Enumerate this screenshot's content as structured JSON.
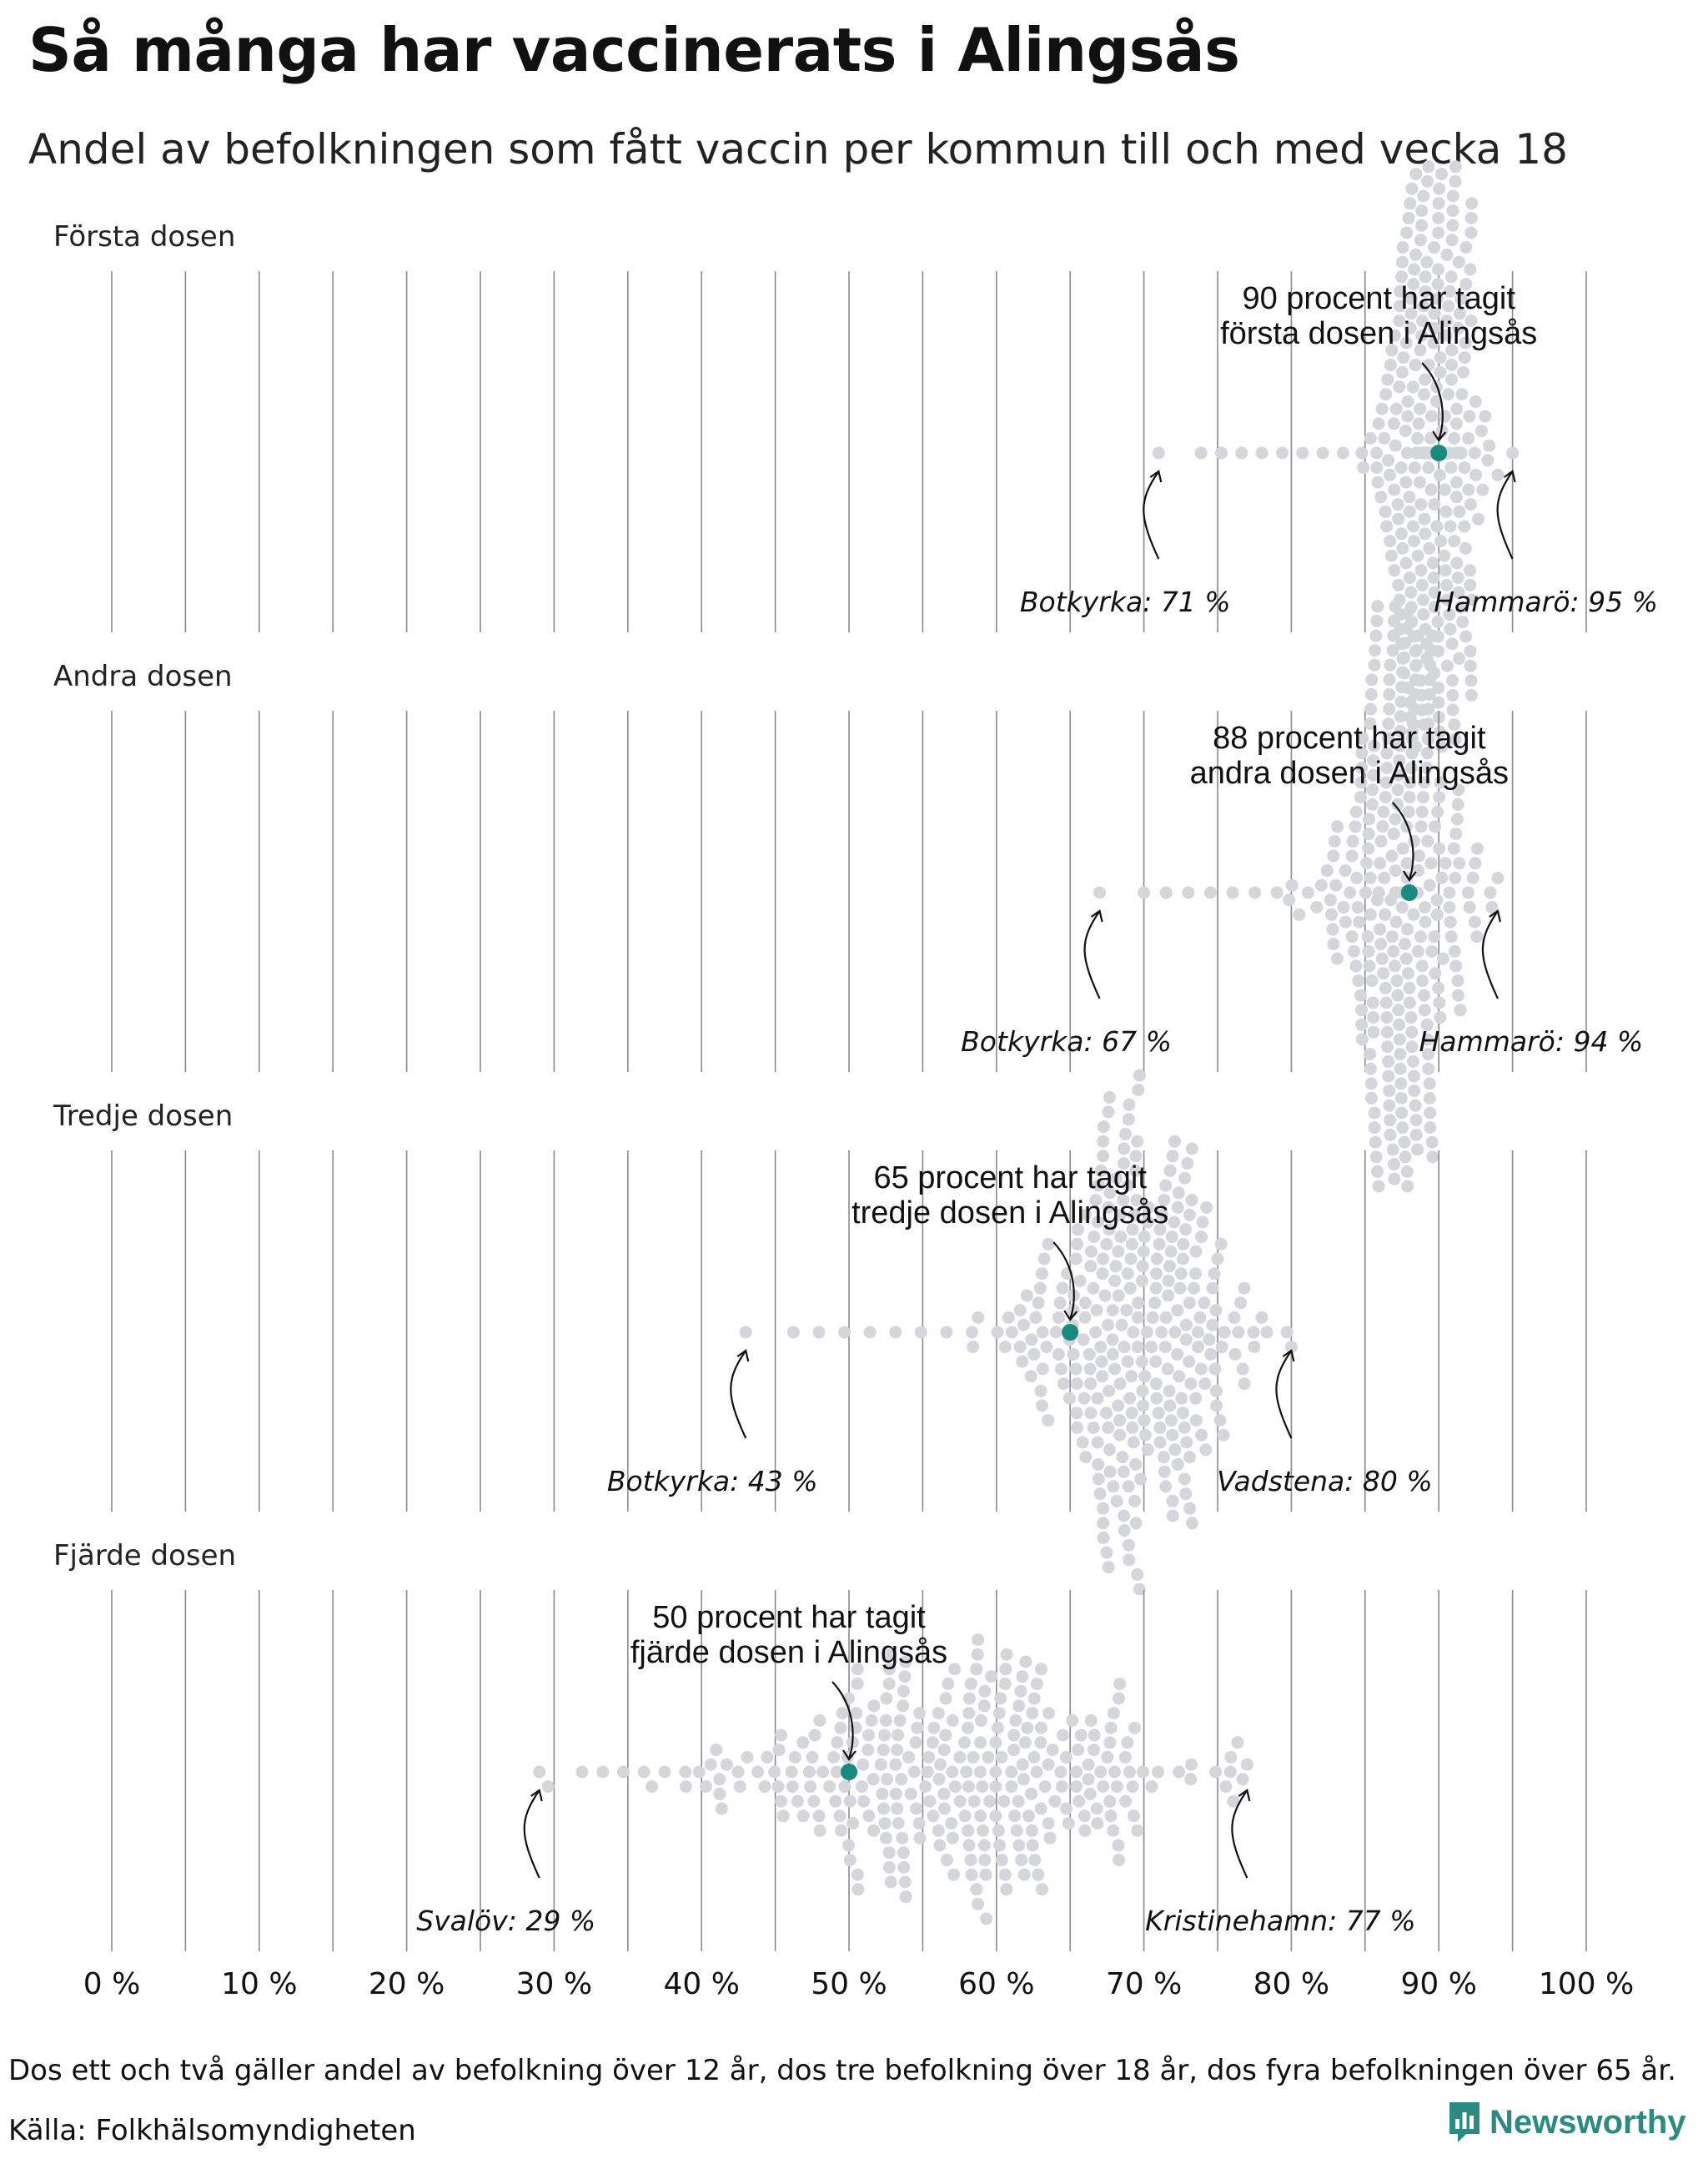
{
  "title": "Så många har vaccinerats i Alingsås",
  "subtitle": "Andel av befolkningen som fått vaccin per kommun till och med vecka 18",
  "footnote": "Dos ett och två gäller andel av befolkning över 12 år, dos tre befolkning över 18 år, dos fyra befolkningen över 65 år.",
  "source": "Källa: Folkhälsomyndigheten",
  "brand": "Newsworthy",
  "colors": {
    "dot": "#d5d5dc",
    "highlight": "#1a8a7e",
    "grid": "#8a8a8a",
    "brand": "#2b8a82"
  },
  "chart_data": {
    "type": "scatter",
    "subtype": "beeswarm",
    "xlim": [
      0,
      100
    ],
    "x_ticks": [
      "0 %",
      "10 %",
      "20 %",
      "30 %",
      "40 %",
      "50 %",
      "60 %",
      "70 %",
      "80 %",
      "90 %",
      "100 %"
    ],
    "grid": true,
    "panels": [
      {
        "label": "Första dosen",
        "highlight": {
          "name": "Alingsås",
          "value": 90,
          "annotation": [
            "90 procent har tagit",
            "första dosen i Alingsås"
          ]
        },
        "min": {
          "name": "Botkyrka",
          "value": 71,
          "label": "Botkyrka: 71 %"
        },
        "max": {
          "name": "Hammarö",
          "value": 95,
          "label": "Hammarö: 95 %"
        },
        "distribution": {
          "center": 89.5,
          "spread": 1.8
        }
      },
      {
        "label": "Andra dosen",
        "highlight": {
          "name": "Alingsås",
          "value": 88,
          "annotation": [
            "88 procent har tagit",
            "andra dosen i Alingsås"
          ]
        },
        "min": {
          "name": "Botkyrka",
          "value": 67,
          "label": "Botkyrka: 67 %"
        },
        "max": {
          "name": "Hammarö",
          "value": 94,
          "label": "Hammarö: 94 %"
        },
        "distribution": {
          "center": 87.5,
          "spread": 2.2
        }
      },
      {
        "label": "Tredje dosen",
        "highlight": {
          "name": "Alingsås",
          "value": 65,
          "annotation": [
            "65 procent har tagit",
            "tredje dosen i Alingsås"
          ]
        },
        "min": {
          "name": "Botkyrka",
          "value": 43,
          "label": "Botkyrka: 43 %"
        },
        "max": {
          "name": "Vadstena",
          "value": 80,
          "label": "Vadstena: 80 %"
        },
        "distribution": {
          "center": 69,
          "spread": 4.0
        }
      },
      {
        "label": "Fjärde dosen",
        "highlight": {
          "name": "Alingsås",
          "value": 50,
          "annotation": [
            "50 procent har tagit",
            "fjärde dosen i Alingsås"
          ]
        },
        "min": {
          "name": "Svalöv",
          "value": 29,
          "label": "Svalöv: 29 %"
        },
        "max": {
          "name": "Kristinehamn",
          "value": 77,
          "label": "Kristinehamn: 77 %"
        },
        "distribution": {
          "center": 58,
          "spread": 7.5
        }
      }
    ]
  }
}
